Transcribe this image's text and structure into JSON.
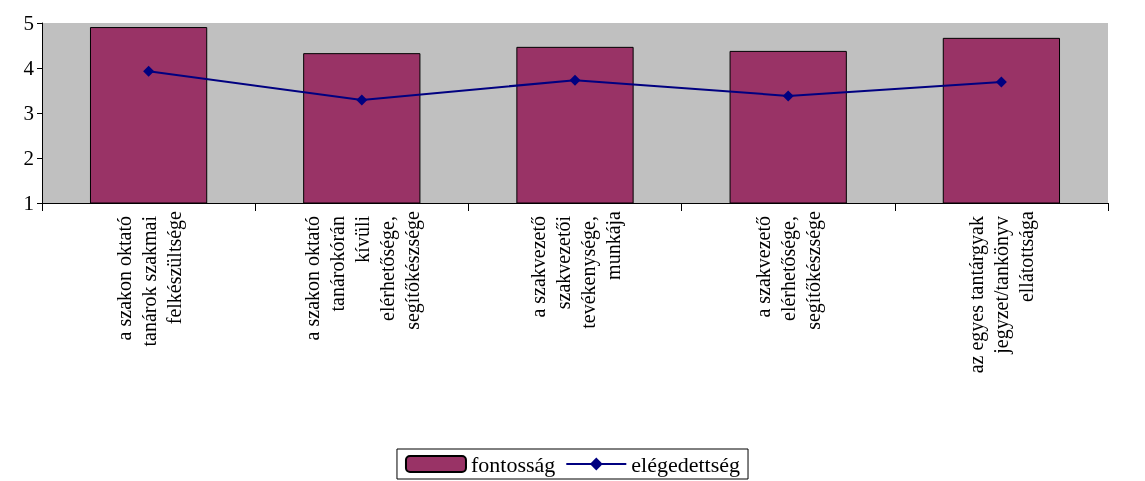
{
  "chart_data": {
    "type": "bar",
    "categories": [
      "a szakon oktató tanárok szakmai felkészültsége",
      "a szakon oktató tanárokórán kívüli elérhetősége, segítőkészsége",
      "a szakvezető szakvezetői tevékenysége, munkája",
      "a szakvezető elérhetősége, segítőkészsége",
      "az egyes tantárgyak jegyzet/tankönyv ellátottsága"
    ],
    "series": [
      {
        "name": "fontosság",
        "color": "#993366",
        "values": [
          4.91,
          4.33,
          4.47,
          4.38,
          4.67
        ]
      },
      {
        "name": "elégedettség",
        "type": "line",
        "color": "#000080",
        "values": [
          3.93,
          3.29,
          3.73,
          3.38,
          3.69
        ]
      }
    ],
    "ylim": [
      1,
      5
    ],
    "yticks": [
      1,
      2,
      3,
      4,
      5
    ],
    "grid": false,
    "legend": "bottom",
    "marker": "diamond",
    "line_style": "solid"
  }
}
